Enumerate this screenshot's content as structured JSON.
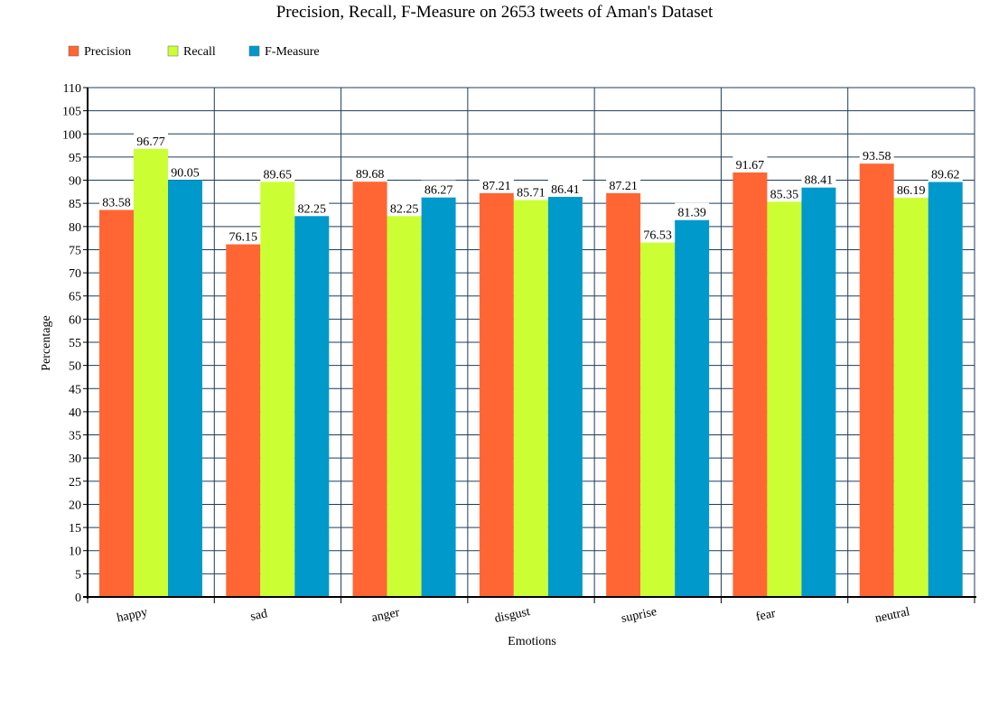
{
  "chart_data": {
    "type": "bar",
    "title": "Precision, Recall, F-Measure on 2653 tweets of Aman's Dataset",
    "xlabel": "Emotions",
    "ylabel": "Percentage",
    "ylim": [
      0,
      110
    ],
    "ytick_step": 5,
    "grid": true,
    "legend_position": "top-left",
    "categories": [
      "happy",
      "sad",
      "anger",
      "disgust",
      "suprise",
      "fear",
      "neutral"
    ],
    "series": [
      {
        "name": "Precision",
        "color": "#ff6633",
        "values": [
          83.58,
          76.15,
          89.68,
          87.21,
          87.21,
          91.67,
          93.58
        ]
      },
      {
        "name": "Recall",
        "color": "#ccff33",
        "values": [
          96.77,
          89.65,
          82.25,
          85.71,
          76.53,
          85.35,
          86.19
        ]
      },
      {
        "name": "F-Measure",
        "color": "#0099cc",
        "values": [
          90.05,
          82.25,
          86.27,
          86.41,
          81.39,
          88.41,
          89.62
        ]
      }
    ],
    "grid_color": "#1f3d5c"
  }
}
